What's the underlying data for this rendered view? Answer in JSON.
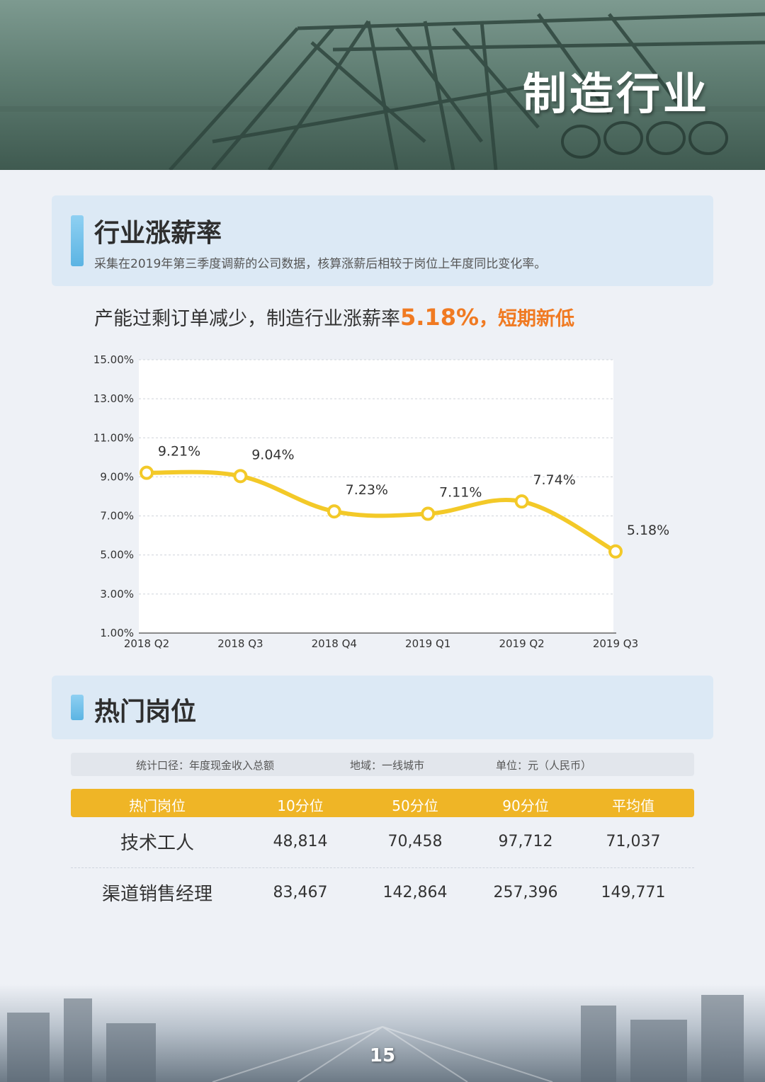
{
  "header": {
    "title": "制造行业"
  },
  "section1": {
    "title": "行业涨薪率",
    "description": "采集在2019年第三季度调薪的公司数据，核算涨薪后相较于岗位上年度同比变化率。"
  },
  "headline": {
    "prefix": "产能过剩订单减少，制造行业涨薪率",
    "value": "5.18%",
    "separator": "，",
    "suffix": "短期新低"
  },
  "colors": {
    "line": "#f3c928",
    "accent": "#f07a22",
    "table_header": "#efb526",
    "section_bar": "#5bb4e3"
  },
  "chart_data": {
    "type": "line",
    "categories": [
      "2018 Q2",
      "2018 Q3",
      "2018 Q4",
      "2019 Q1",
      "2019 Q2",
      "2019 Q3"
    ],
    "series": [
      {
        "values": [
          9.21,
          9.04,
          7.23,
          7.11,
          7.74,
          5.18
        ]
      }
    ],
    "data_labels": [
      "9.21%",
      "9.04%",
      "7.23%",
      "7.11%",
      "7.74%",
      "5.18%"
    ],
    "y_ticks": [
      1,
      3,
      5,
      7,
      9,
      11,
      13,
      15
    ],
    "y_tick_labels": [
      "1.00%",
      "3.00%",
      "5.00%",
      "7.00%",
      "9.00%",
      "11.00%",
      "13.00%",
      "15.00%"
    ],
    "ylim": [
      1,
      15
    ],
    "grid": true,
    "title": "",
    "xlabel": "",
    "ylabel": ""
  },
  "section2": {
    "title": "热门岗位"
  },
  "table": {
    "filters": [
      "统计口径：年度现金收入总额",
      "地域：一线城市",
      "单位：元（人民币）"
    ],
    "headers": [
      "热门岗位",
      "10分位",
      "50分位",
      "90分位",
      "平均值"
    ],
    "rows": [
      [
        "技术工人",
        "48,814",
        "70,458",
        "97,712",
        "71,037"
      ],
      [
        "渠道销售经理",
        "83,467",
        "142,864",
        "257,396",
        "149,771"
      ]
    ]
  },
  "footer": {
    "page_number": "15"
  }
}
